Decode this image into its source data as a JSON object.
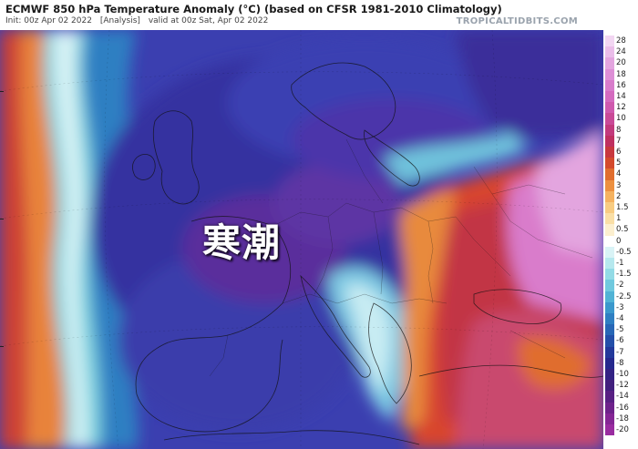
{
  "header": {
    "title": "ECMWF 850 hPa Temperature Anomaly (°C) (based on CFSR 1981-2010 Climatology)",
    "init": "Init: 00z Apr 02 2022",
    "analysis": "[Analysis]",
    "valid": "valid at 00z Sat, Apr 02 2022",
    "brand": "TROPICALTIDBITS.COM"
  },
  "overlay": {
    "label": "寒潮"
  },
  "legend": {
    "labels": [
      "28",
      "24",
      "20",
      "18",
      "16",
      "14",
      "12",
      "10",
      "8",
      "7",
      "6",
      "5",
      "4",
      "3",
      "2",
      "1.5",
      "1",
      "0.5",
      "0",
      "-0.5",
      "-1",
      "-1.5",
      "-2",
      "-2.5",
      "-3",
      "-4",
      "-5",
      "-6",
      "-7",
      "-8",
      "-10",
      "-12",
      "-14",
      "-16",
      "-18",
      "-20"
    ],
    "colors": [
      "#f2d6f2",
      "#eabde9",
      "#e3a5df",
      "#dd8fd6",
      "#d87ccb",
      "#d46bbf",
      "#cf5aae",
      "#c94a97",
      "#c23a7c",
      "#bf3060",
      "#c8383e",
      "#d44a2c",
      "#e06d2e",
      "#ec9040",
      "#f5b260",
      "#f8cc82",
      "#fadfa6",
      "#fcefcf",
      "#ffffff",
      "#d9f3f6",
      "#b6e8ee",
      "#93dbe6",
      "#70c9de",
      "#51b3d5",
      "#3b98cc",
      "#2f7fc2",
      "#2867b6",
      "#244fa9",
      "#23399b",
      "#25288d",
      "#322284",
      "#42207e",
      "#582083",
      "#6e228b",
      "#852695",
      "#9a2ca0"
    ]
  }
}
